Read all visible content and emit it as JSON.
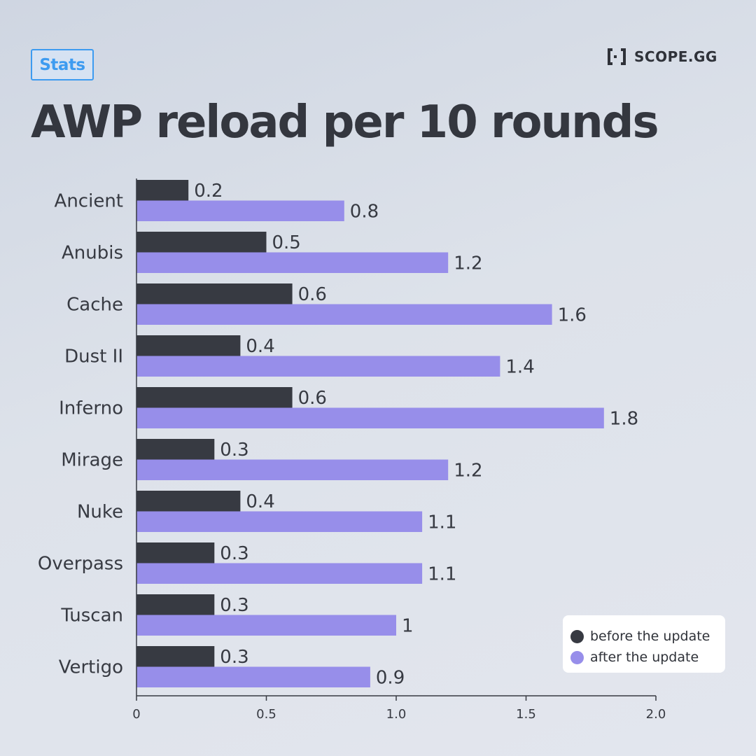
{
  "header": {
    "badge": "Stats",
    "brand": "SCOPE.GG",
    "brand_icon": "bracket-logo-icon"
  },
  "colors": {
    "before": "#373a42",
    "after": "#978eea",
    "accent": "#3d9bf0"
  },
  "chart_data": {
    "type": "bar",
    "orientation": "horizontal",
    "title": "AWP reload per 10 rounds",
    "categories": [
      "Ancient",
      "Anubis",
      "Cache",
      "Dust II",
      "Inferno",
      "Mirage",
      "Nuke",
      "Overpass",
      "Tuscan",
      "Vertigo"
    ],
    "series": [
      {
        "name": "before the update",
        "color": "#373a42",
        "values": [
          0.2,
          0.5,
          0.6,
          0.4,
          0.6,
          0.3,
          0.4,
          0.3,
          0.3,
          0.3
        ]
      },
      {
        "name": "after the update",
        "color": "#978eea",
        "values": [
          0.8,
          1.2,
          1.6,
          1.4,
          1.8,
          1.2,
          1.1,
          1.1,
          1,
          0.9
        ]
      }
    ],
    "xlim": [
      0,
      2.0
    ],
    "xticks": [
      "0",
      "0.5",
      "1.0",
      "1.5",
      "2.0"
    ],
    "xtick_values": [
      0,
      0.5,
      1.0,
      1.5,
      2.0
    ],
    "grid": false,
    "legend_position": "bottom-right",
    "data_labels": true
  }
}
